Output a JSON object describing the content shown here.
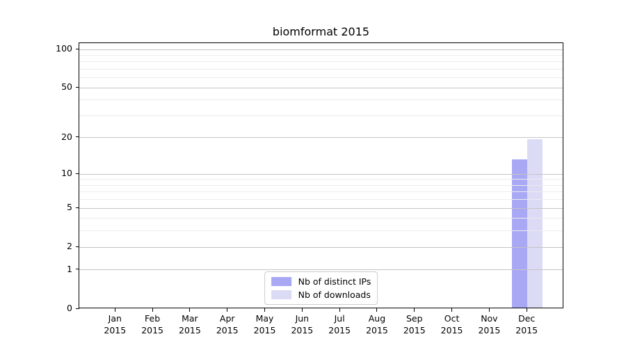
{
  "title": "biomformat 2015",
  "chart_data": {
    "type": "bar",
    "title": "biomformat 2015",
    "categories": [
      "Jan",
      "Feb",
      "Mar",
      "Apr",
      "May",
      "Jun",
      "Jul",
      "Aug",
      "Sep",
      "Oct",
      "Nov",
      "Dec"
    ],
    "x_tick_year": "2015",
    "series": [
      {
        "name": "Nb of distinct IPs",
        "color": "#a8a8f5",
        "values": [
          0,
          0,
          0,
          0,
          0,
          0,
          0,
          0,
          0,
          0,
          0,
          13
        ]
      },
      {
        "name": "Nb of downloads",
        "color": "#dbdbf6",
        "values": [
          0,
          0,
          0,
          0,
          0,
          0,
          0,
          0,
          0,
          0,
          0,
          19
        ]
      }
    ],
    "yscale": "log1p",
    "ylim": [
      0,
      112
    ],
    "yticks": [
      0,
      1,
      2,
      5,
      10,
      20,
      50,
      100
    ],
    "minor_grid_values": [
      3,
      4,
      6,
      7,
      8,
      9,
      30,
      40,
      60,
      70,
      80,
      90
    ],
    "grid": true,
    "legend_position": "lower center",
    "colors": {
      "major_grid": "#c4c4c4",
      "minor_grid": "#ececec",
      "axis": "#000000",
      "text": "#000000",
      "background": "#ffffff"
    }
  }
}
